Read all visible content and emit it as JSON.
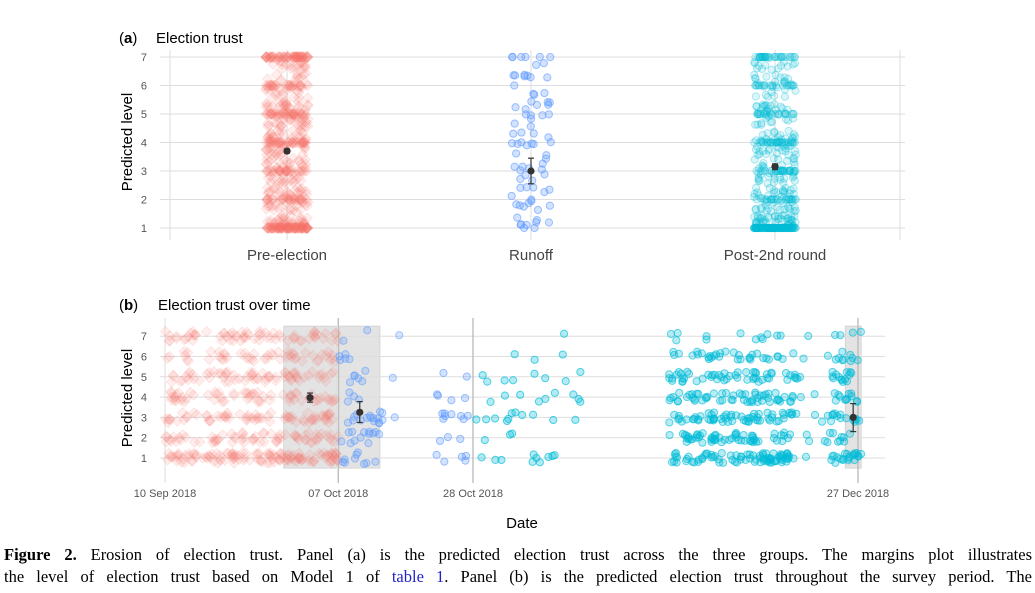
{
  "figure": {
    "caption_label": "Figure 2.",
    "caption_line1_rest": " Erosion of election trust. Panel (a) is the predicted election trust across the three groups. The margins plot illustrates",
    "caption_line2_pre": "the level of election trust based on Model 1 of ",
    "caption_link": "table 1",
    "caption_line2_post": ". Panel (b) is the predicted election trust throughout the survey period. The"
  },
  "colors": {
    "pre_election": "#f8766d",
    "runoff": "#619cff",
    "post_2nd_round": "#00bcd8",
    "grid": "#dedede",
    "shade": "#d9d9d9",
    "estimate": "#333333"
  },
  "chart_data": [
    {
      "type": "scatter",
      "panel": "(a)",
      "title": "Election trust",
      "xlabel": "",
      "ylabel": "Predicted level",
      "ylim": [
        0.7,
        7.3
      ],
      "yticks": [
        1,
        2,
        3,
        4,
        5,
        6,
        7
      ],
      "grid": true,
      "categories": [
        "Pre-election",
        "Runoff",
        "Post-2nd round"
      ],
      "series": [
        {
          "name": "Pre-election",
          "marker": "diamond",
          "n_points_approx": 600,
          "estimate": 3.7,
          "ci": [
            3.63,
            3.77
          ]
        },
        {
          "name": "Runoff",
          "marker": "circle",
          "n_points_approx": 80,
          "estimate": 3.0,
          "ci": [
            2.55,
            3.45
          ]
        },
        {
          "name": "Post-2nd round",
          "marker": "circle",
          "n_points_approx": 500,
          "estimate": 3.15,
          "ci": [
            3.05,
            3.25
          ]
        }
      ]
    },
    {
      "type": "scatter",
      "panel": "(b)",
      "title": "Election trust over time",
      "xlabel": "Date",
      "ylabel": "Predicted level",
      "ylim": [
        0.5,
        7.5
      ],
      "yticks": [
        1,
        2,
        3,
        4,
        5,
        6,
        7
      ],
      "xlim": [
        "2018-09-10",
        "2018-12-27"
      ],
      "xticks": [
        "10 Sep 2018",
        "07 Oct 2018",
        "28 Oct 2018",
        "27 Dec 2018"
      ],
      "grid": true,
      "shaded_windows": [
        {
          "from_day": 18.5,
          "to_day": 26.7,
          "estimate": 3.97,
          "ci": [
            3.75,
            4.2
          ],
          "group": "Pre-election"
        },
        {
          "from_day": 27.2,
          "to_day": 33.5,
          "estimate": 3.25,
          "ci": [
            2.75,
            3.78
          ],
          "group": "Runoff"
        },
        {
          "from_day": 106.0,
          "to_day": 108.5,
          "estimate": 3.0,
          "ci": [
            2.3,
            3.68
          ],
          "group": "Post-2nd round"
        }
      ],
      "series": [
        {
          "name": "Pre-election",
          "marker": "diamond",
          "day_range": [
            0,
            27
          ]
        },
        {
          "name": "Runoff",
          "marker": "circle",
          "day_range": [
            27,
            34
          ],
          "extra_day_range": [
            42,
            48
          ]
        },
        {
          "name": "Post-2nd round",
          "marker": "circle",
          "day_range": [
            48,
            66
          ],
          "extra_day_range": [
            79,
            109
          ]
        }
      ]
    }
  ],
  "panel_a": {
    "label": "(a)",
    "title": "Election trust",
    "ylabel": "Predicted level",
    "yticks": [
      "1",
      "2",
      "3",
      "4",
      "5",
      "6",
      "7"
    ],
    "categories": [
      "Pre-election",
      "Runoff",
      "Post-2nd round"
    ]
  },
  "panel_b": {
    "label": "(b)",
    "title": "Election trust over time",
    "ylabel": "Predicted level",
    "xlabel": "Date",
    "yticks": [
      "1",
      "2",
      "3",
      "4",
      "5",
      "6",
      "7"
    ],
    "xticks": [
      "10 Sep 2018",
      "07 Oct 2018",
      "28 Oct 2018",
      "27 Dec 2018"
    ]
  }
}
